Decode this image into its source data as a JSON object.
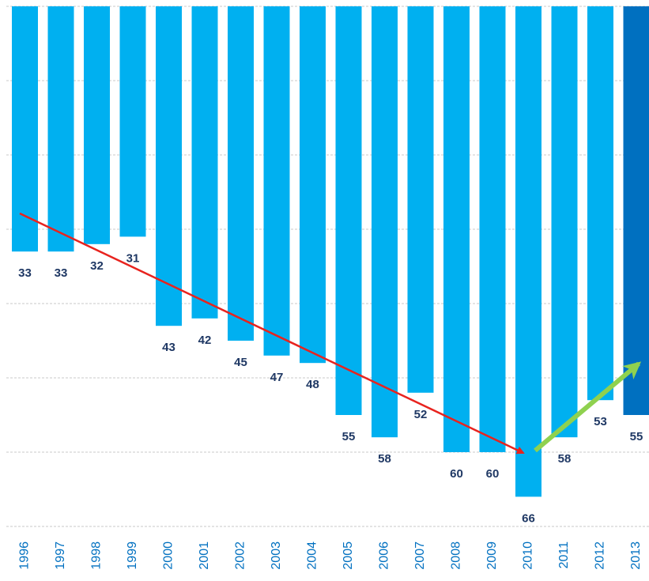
{
  "chart_data": {
    "type": "bar",
    "categories": [
      "1996",
      "1997",
      "1998",
      "1999",
      "2000",
      "2001",
      "2002",
      "2003",
      "2004",
      "2005",
      "2006",
      "2007",
      "2008",
      "2009",
      "2010",
      "2011",
      "2012",
      "2013"
    ],
    "values": [
      33,
      33,
      32,
      31,
      43,
      42,
      45,
      47,
      48,
      55,
      58,
      52,
      60,
      60,
      66,
      58,
      53,
      55
    ],
    "colors": [
      "#00b0f0",
      "#00b0f0",
      "#00b0f0",
      "#00b0f0",
      "#00b0f0",
      "#00b0f0",
      "#00b0f0",
      "#00b0f0",
      "#00b0f0",
      "#00b0f0",
      "#00b0f0",
      "#00b0f0",
      "#00b0f0",
      "#00b0f0",
      "#00b0f0",
      "#00b0f0",
      "#00b0f0",
      "#0070c0"
    ],
    "ylim": [
      0,
      70
    ],
    "yticks": [
      0,
      10,
      20,
      30,
      40,
      50,
      60,
      70
    ],
    "inverted": true,
    "grid": true
  }
}
